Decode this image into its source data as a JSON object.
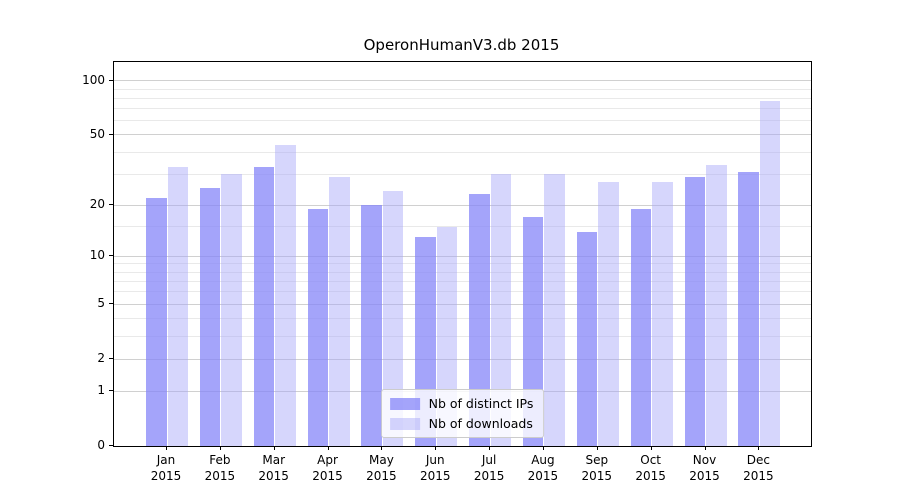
{
  "chart_data": {
    "type": "bar",
    "title": "OperonHumanV3.db 2015",
    "categories": [
      "Jan",
      "Feb",
      "Mar",
      "Apr",
      "May",
      "Jun",
      "Jul",
      "Aug",
      "Sep",
      "Oct",
      "Nov",
      "Dec"
    ],
    "category_year": "2015",
    "series": [
      {
        "name": "Nb of distinct IPs",
        "color": "rgba(134,134,248,0.75)",
        "values": [
          22,
          25,
          33,
          19,
          20,
          13,
          23,
          17,
          14,
          19,
          29,
          31
        ]
      },
      {
        "name": "Nb of downloads",
        "color": "rgba(164,164,248,0.45)",
        "values": [
          33,
          30,
          44,
          29,
          24,
          15,
          30,
          30,
          27,
          27,
          34,
          77
        ]
      }
    ],
    "yscale": "log1p",
    "ylim": [
      0,
      127
    ],
    "y_ticks": [
      100,
      50,
      20,
      10,
      5,
      2,
      1,
      0
    ],
    "y_minor_ticks": [
      3,
      4,
      6,
      7,
      8,
      9,
      15,
      30,
      40,
      60,
      70,
      80,
      90
    ],
    "grid": true,
    "legend_position": "lower center"
  },
  "colors": {
    "background": "#ffffff",
    "axis": "#000000",
    "grid_major": "#d0d0d0",
    "grid_minor": "#e9e9e9",
    "legend_border": "#cccccc",
    "text": "#000000"
  }
}
